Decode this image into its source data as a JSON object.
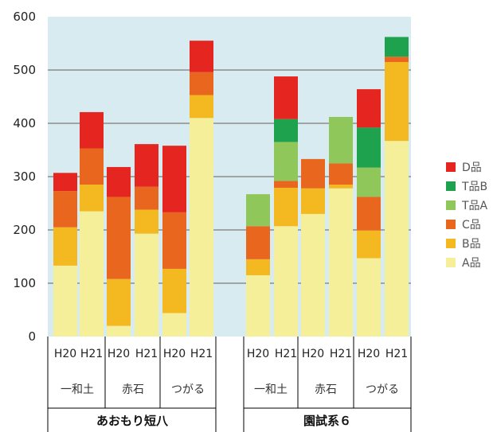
{
  "chart_data": {
    "type": "bar",
    "stacked": true,
    "ylim": [
      0,
      600
    ],
    "yticks": [
      0,
      100,
      200,
      300,
      400,
      500,
      600
    ],
    "grid": true,
    "legend_position": "right",
    "categories": [
      "H20",
      "H21",
      "H20",
      "H21",
      "H20",
      "H21",
      "H20",
      "H21",
      "H20",
      "H21",
      "H20",
      "H21"
    ],
    "region_labels": [
      "一和土",
      "赤石",
      "つがる",
      "一和土",
      "赤石",
      "つがる"
    ],
    "cultivar_labels": [
      "あおもり短八",
      "園試系６"
    ],
    "series": [
      {
        "name": "A品",
        "color": "#f5ef9a",
        "values": [
          133,
          235,
          20,
          193,
          44,
          410,
          115,
          207,
          230,
          278,
          147,
          367
        ]
      },
      {
        "name": "B品",
        "color": "#f4b820",
        "values": [
          72,
          50,
          88,
          45,
          83,
          43,
          30,
          72,
          48,
          7,
          52,
          148
        ]
      },
      {
        "name": "C品",
        "color": "#e8661e",
        "values": [
          68,
          68,
          154,
          43,
          106,
          43,
          62,
          13,
          55,
          40,
          63,
          10
        ]
      },
      {
        "name": "T品A",
        "color": "#8fc75a",
        "values": [
          0,
          0,
          0,
          0,
          0,
          0,
          60,
          73,
          0,
          87,
          55,
          0
        ]
      },
      {
        "name": "T品B",
        "color": "#1ea24e",
        "values": [
          0,
          0,
          0,
          0,
          0,
          0,
          0,
          43,
          0,
          0,
          75,
          37
        ]
      },
      {
        "name": "D品",
        "color": "#e52620",
        "values": [
          34,
          68,
          56,
          80,
          125,
          59,
          0,
          80,
          0,
          0,
          72,
          0
        ]
      }
    ]
  }
}
